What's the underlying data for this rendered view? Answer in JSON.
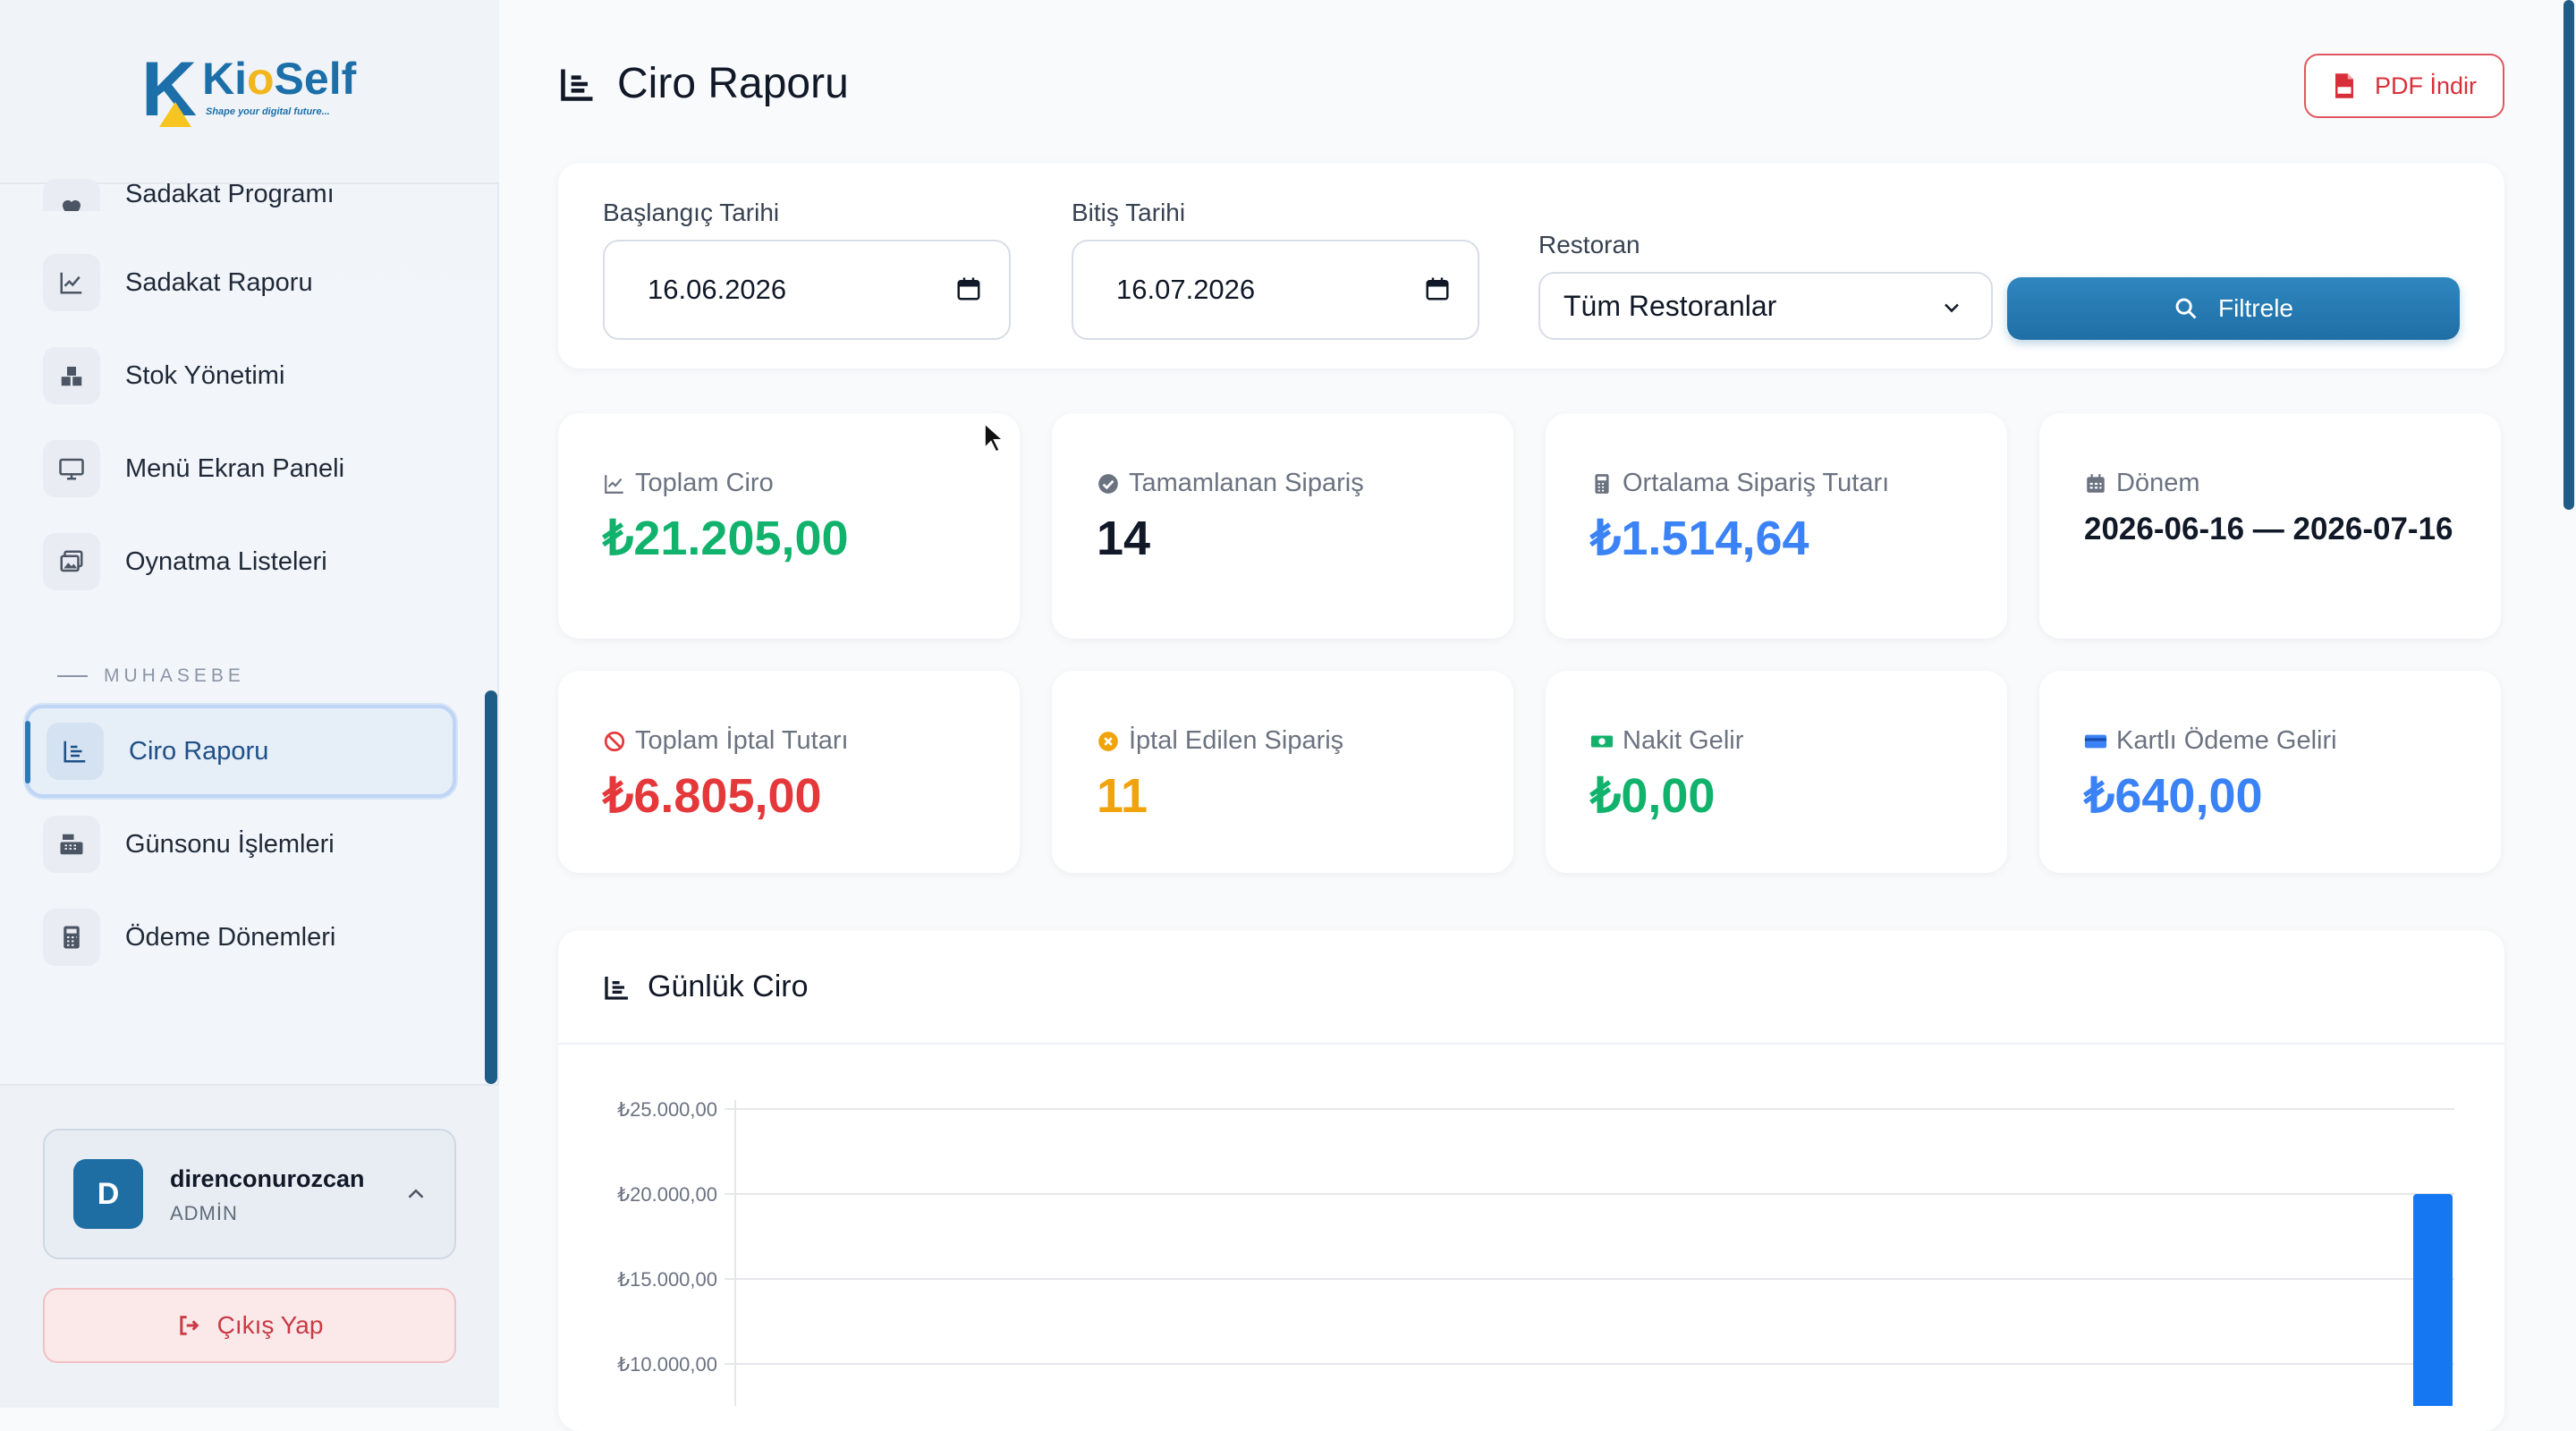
{
  "brand": {
    "letter": "K",
    "name_part1": "Ki",
    "name_o": "o",
    "name_part2": "Self",
    "tagline": "Shape your digital future..."
  },
  "sidebar": {
    "partial_item": {
      "label": "Sadakat Programı",
      "icon": "heart-icon"
    },
    "items": [
      {
        "label": "Sadakat Raporu",
        "icon": "line-chart-icon"
      },
      {
        "label": "Stok Yönetimi",
        "icon": "boxes-icon"
      },
      {
        "label": "Menü Ekran Paneli",
        "icon": "monitor-icon"
      },
      {
        "label": "Oynatma Listeleri",
        "icon": "images-icon"
      }
    ],
    "section_title": "MUHASEBE",
    "accounting_items": [
      {
        "label": "Ciro Raporu",
        "icon": "bar-chart-icon",
        "active": true
      },
      {
        "label": "Günsonu İşlemleri",
        "icon": "cash-register-icon"
      },
      {
        "label": "Ödeme Dönemleri",
        "icon": "calculator-icon"
      }
    ],
    "user": {
      "initial": "D",
      "name": "direnconurozcan",
      "role": "ADMİN"
    },
    "logout_label": "Çıkış Yap"
  },
  "header": {
    "title": "Ciro Raporu",
    "pdf_button": "PDF İndir"
  },
  "filters": {
    "start_label": "Başlangıç Tarihi",
    "start_value": "16.06.2026",
    "end_label": "Bitiş Tarihi",
    "end_value": "16.07.2026",
    "restaurant_label": "Restoran",
    "restaurant_value": "Tüm Restoranlar",
    "filter_button": "Filtrele"
  },
  "stats": [
    {
      "label": "Toplam Ciro",
      "value": "₺21.205,00",
      "color": "#10b26c",
      "icon": "line-chart-icon"
    },
    {
      "label": "Tamamlanan Sipariş",
      "value": "14",
      "color": "#111827",
      "icon": "check-circle-icon"
    },
    {
      "label": "Ortalama Sipariş Tutarı",
      "value": "₺1.514,64",
      "color": "#3b82f6",
      "icon": "calculator-icon"
    },
    {
      "label": "Dönem",
      "value": "2026-06-16 — 2026-07-16",
      "color": "#111827",
      "icon": "calendar-icon"
    },
    {
      "label": "Toplam İptal Tutarı",
      "value": "₺6.805,00",
      "color": "#e5383b",
      "icon": "ban-icon"
    },
    {
      "label": "İptal Edilen Sipariş",
      "value": "11",
      "color": "#f0a30a",
      "icon": "x-circle-icon"
    },
    {
      "label": "Nakit Gelir",
      "value": "₺0,00",
      "color": "#10b26c",
      "icon": "money-icon"
    },
    {
      "label": "Kartlı Ödeme Geliri",
      "value": "₺640,00",
      "color": "#3b82f6",
      "icon": "credit-card-icon"
    }
  ],
  "chart_section": {
    "title": "Günlük Ciro"
  },
  "chart_data": {
    "type": "bar",
    "title": "Günlük Ciro",
    "ytick_labels": [
      "₺25.000,00",
      "₺20.000,00",
      "₺15.000,00",
      "₺10.000,00"
    ],
    "yticks": [
      25000,
      20000,
      15000,
      10000
    ],
    "ylim": [
      0,
      25000
    ],
    "series": [
      {
        "values": [
          20000
        ],
        "color": "#1677f2"
      }
    ],
    "grid": true
  }
}
